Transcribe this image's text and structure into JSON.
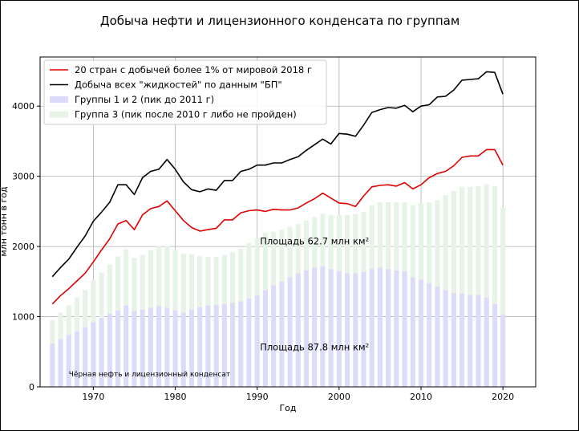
{
  "chart_data": {
    "type": "bar",
    "title": "Добыча нефти и лицензионного конденсата по группам",
    "xlabel": "Год",
    "ylabel": "млн тонн в год",
    "xlim": [
      1963.5,
      2024
    ],
    "ylim": [
      0,
      4700
    ],
    "xticks": [
      1970,
      1980,
      1990,
      2000,
      2010,
      2020
    ],
    "yticks": [
      0,
      1000,
      2000,
      3000,
      4000
    ],
    "grid": true,
    "legend_position": "top-left",
    "x": [
      1965,
      1966,
      1967,
      1968,
      1969,
      1970,
      1971,
      1972,
      1973,
      1974,
      1975,
      1976,
      1977,
      1978,
      1979,
      1980,
      1981,
      1982,
      1983,
      1984,
      1985,
      1986,
      1987,
      1988,
      1989,
      1990,
      1991,
      1992,
      1993,
      1994,
      1995,
      1996,
      1997,
      1998,
      1999,
      2000,
      2001,
      2002,
      2003,
      2004,
      2005,
      2006,
      2007,
      2008,
      2009,
      2010,
      2011,
      2012,
      2013,
      2014,
      2015,
      2016,
      2017,
      2018,
      2019,
      2020
    ],
    "bar_series": [
      {
        "name": "Группы 1 и 2 (пик до 2011 г)",
        "color": "#dcdcfa",
        "values": [
          620,
          680,
          740,
          790,
          850,
          920,
          980,
          1040,
          1090,
          1160,
          1080,
          1100,
          1130,
          1150,
          1130,
          1090,
          1060,
          1100,
          1140,
          1160,
          1170,
          1180,
          1200,
          1220,
          1260,
          1300,
          1380,
          1450,
          1500,
          1560,
          1620,
          1660,
          1700,
          1720,
          1680,
          1650,
          1620,
          1620,
          1640,
          1680,
          1700,
          1680,
          1660,
          1650,
          1560,
          1530,
          1480,
          1430,
          1380,
          1340,
          1330,
          1310,
          1310,
          1270,
          1180,
          1030
        ]
      },
      {
        "name": "Группа 3 (пик после 2010 г либо не пройден)",
        "color": "#e6f4e6",
        "values": [
          330,
          380,
          420,
          480,
          530,
          600,
          650,
          700,
          770,
          800,
          760,
          780,
          820,
          860,
          880,
          860,
          840,
          790,
          720,
          690,
          680,
          700,
          720,
          750,
          790,
          820,
          820,
          760,
          740,
          720,
          700,
          710,
          720,
          750,
          770,
          800,
          830,
          840,
          850,
          910,
          930,
          950,
          970,
          980,
          1030,
          1090,
          1150,
          1230,
          1350,
          1450,
          1520,
          1540,
          1550,
          1620,
          1680,
          1520
        ]
      }
    ],
    "line_series": [
      {
        "name": "20 стран с добычей более 1% от мировой 2018 г",
        "color": "#e00000",
        "values": [
          1180,
          1300,
          1400,
          1510,
          1620,
          1780,
          1950,
          2110,
          2320,
          2370,
          2240,
          2450,
          2540,
          2570,
          2650,
          2510,
          2370,
          2270,
          2220,
          2240,
          2260,
          2380,
          2380,
          2480,
          2510,
          2520,
          2500,
          2530,
          2520,
          2520,
          2550,
          2620,
          2680,
          2760,
          2690,
          2620,
          2610,
          2570,
          2720,
          2850,
          2870,
          2880,
          2860,
          2910,
          2820,
          2880,
          2980,
          3040,
          3070,
          3150,
          3270,
          3290,
          3290,
          3380,
          3380,
          3160
        ]
      },
      {
        "name": "Добыча всех \"жидкостей\" по данным \"БП\"",
        "color": "#000000",
        "values": [
          1570,
          1700,
          1820,
          1990,
          2150,
          2360,
          2490,
          2630,
          2880,
          2880,
          2740,
          2980,
          3070,
          3100,
          3240,
          3100,
          2920,
          2810,
          2780,
          2820,
          2800,
          2940,
          2940,
          3070,
          3100,
          3160,
          3160,
          3190,
          3190,
          3240,
          3280,
          3370,
          3450,
          3530,
          3460,
          3610,
          3600,
          3570,
          3730,
          3910,
          3950,
          3980,
          3970,
          4010,
          3920,
          4000,
          4020,
          4130,
          4140,
          4230,
          4370,
          4380,
          4390,
          4490,
          4480,
          4170
        ]
      }
    ],
    "annotations": [
      {
        "text": "Площадь 62.7 млн км²",
        "x": 1997,
        "y": 2030
      },
      {
        "text": "Площадь 87.8 млн км²",
        "x": 1997,
        "y": 520
      },
      {
        "text": "Чёрная нефть и лицензионный конденсат",
        "x": 1967,
        "y": 150
      }
    ]
  }
}
